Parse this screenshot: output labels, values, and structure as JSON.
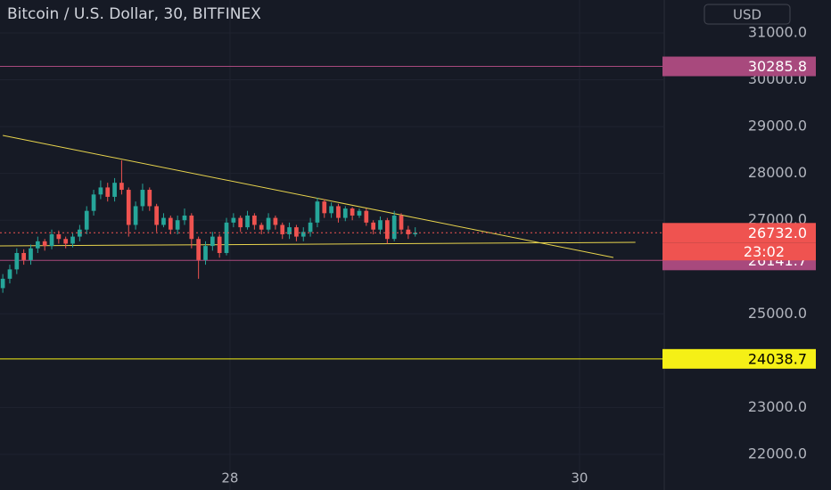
{
  "chart_data": {
    "type": "candlestick",
    "title": "Bitcoin / U.S. Dollar, 30, BITFINEX",
    "currency": "USD",
    "up_color": "#26a69a",
    "down_color": "#ef5350",
    "x": [
      26.7,
      26.74,
      26.78,
      26.82,
      26.86,
      26.9,
      26.94,
      26.98,
      27.02,
      27.06,
      27.1,
      27.14,
      27.18,
      27.22,
      27.26,
      27.3,
      27.34,
      27.38,
      27.42,
      27.46,
      27.5,
      27.54,
      27.58,
      27.62,
      27.66,
      27.7,
      27.74,
      27.78,
      27.82,
      27.86,
      27.9,
      27.94,
      27.98,
      28.02,
      28.06,
      28.1,
      28.14,
      28.18,
      28.22,
      28.26,
      28.3,
      28.34,
      28.38,
      28.42,
      28.46,
      28.5,
      28.54,
      28.58,
      28.62,
      28.66,
      28.7,
      28.74,
      28.78,
      28.82,
      28.86,
      28.9,
      28.94,
      28.98,
      29.02,
      29.06
    ],
    "open": [
      25550,
      25750,
      25950,
      26300,
      26150,
      26400,
      26550,
      26450,
      26700,
      26600,
      26500,
      26650,
      26800,
      27200,
      27550,
      27700,
      27500,
      27800,
      27650,
      26900,
      27300,
      27650,
      27300,
      26900,
      27050,
      26800,
      27000,
      27100,
      26600,
      26150,
      26450,
      26650,
      26300,
      26950,
      27050,
      26850,
      27100,
      26900,
      26800,
      27050,
      26900,
      26700,
      26850,
      26650,
      26750,
      26950,
      27400,
      27150,
      27300,
      27050,
      27250,
      27100,
      27200,
      26950,
      26800,
      27000,
      26600,
      27100,
      26800,
      26700
    ],
    "high": [
      25850,
      26050,
      26400,
      26380,
      26480,
      26650,
      26600,
      26800,
      26780,
      26650,
      26720,
      26900,
      27300,
      27650,
      27850,
      27800,
      27900,
      28280,
      27700,
      27400,
      27780,
      27700,
      27350,
      27150,
      27100,
      27100,
      27250,
      27150,
      26650,
      26550,
      26750,
      26700,
      27050,
      27150,
      27100,
      27200,
      27150,
      26950,
      27150,
      27100,
      26950,
      26950,
      26900,
      26850,
      27050,
      27480,
      27450,
      27380,
      27350,
      27300,
      27280,
      27250,
      27250,
      27000,
      27080,
      27050,
      27200,
      27150,
      26880,
      26850
    ],
    "low": [
      25450,
      25650,
      25850,
      26050,
      26050,
      26300,
      26350,
      26380,
      26500,
      26400,
      26420,
      26550,
      26700,
      27100,
      27450,
      27400,
      27400,
      27550,
      26650,
      26800,
      27200,
      27200,
      26750,
      26850,
      26700,
      26700,
      26900,
      26400,
      25750,
      26050,
      26350,
      26200,
      26250,
      26850,
      26750,
      26800,
      26800,
      26700,
      26750,
      26800,
      26600,
      26600,
      26550,
      26550,
      26650,
      26850,
      27050,
      27050,
      26950,
      26980,
      27000,
      27050,
      26880,
      26700,
      26700,
      26500,
      26550,
      26700,
      26600,
      26650
    ],
    "close": [
      25750,
      25950,
      26300,
      26150,
      26400,
      26550,
      26450,
      26700,
      26600,
      26500,
      26650,
      26800,
      27200,
      27550,
      27700,
      27500,
      27800,
      27650,
      26900,
      27300,
      27650,
      27300,
      26900,
      27050,
      26800,
      27000,
      27100,
      26600,
      26150,
      26450,
      26650,
      26300,
      26950,
      27050,
      26850,
      27100,
      26900,
      26800,
      27050,
      26900,
      26700,
      26850,
      26650,
      26750,
      26950,
      27400,
      27150,
      27300,
      27050,
      27250,
      27100,
      27200,
      26950,
      26800,
      27000,
      26600,
      27100,
      26800,
      26700,
      26732
    ],
    "xlim": [
      26.684,
      30.485
    ],
    "xticks": [
      28,
      30
    ],
    "ylim": [
      21238,
      31704
    ],
    "yticks": [
      {
        "value": 22000,
        "label": "22000.0"
      },
      {
        "value": 23000,
        "label": "23000.0"
      },
      {
        "value": 25000,
        "label": "25000.0"
      },
      {
        "value": 27000,
        "label": "27000.0"
      },
      {
        "value": 28000,
        "label": "28000.0"
      },
      {
        "value": 29000,
        "label": "29000.0"
      },
      {
        "value": 30000,
        "label": "30000.0"
      },
      {
        "value": 31000,
        "label": "31000.0"
      }
    ],
    "levels": [
      {
        "value": 30285.8,
        "color": "#a8497d",
        "text_color": "#ffffff"
      },
      {
        "value": 26141.7,
        "color": "#a8497d",
        "text_color": "#ffffff"
      },
      {
        "value": 24038.7,
        "color": "#f5f016",
        "text_color": "#000000"
      }
    ],
    "last_price": {
      "value": 26732,
      "label": "26732.0"
    },
    "countdown": "23:02",
    "trendlines": [
      {
        "color": "#e8d44d",
        "x": [
          26.7,
          30.194
        ],
        "y": [
          28812,
          26205
        ]
      },
      {
        "color": "#e8d44d",
        "x": [
          26.684,
          30.32
        ],
        "y": [
          26452,
          26528
        ]
      }
    ]
  }
}
